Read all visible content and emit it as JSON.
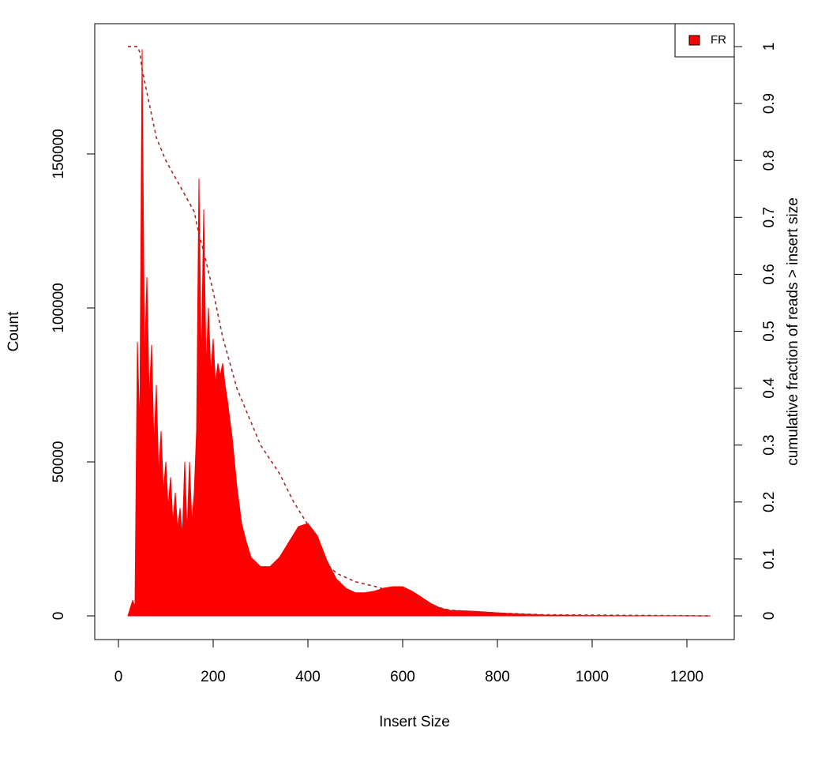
{
  "chart_data": {
    "type": "area",
    "xlabel": "Insert Size",
    "ylabel": "Count",
    "y2label": "cumulative fraction of reads > insert size",
    "xlim": [
      -50,
      1300
    ],
    "xticks": [
      0,
      200,
      400,
      600,
      800,
      1000,
      1200
    ],
    "ylim": [
      -7692,
      192308
    ],
    "yticks": [
      0,
      50000,
      100000,
      150000
    ],
    "y2lim": [
      -0.0416,
      1.0402
    ],
    "y2ticks": [
      0,
      0.1,
      0.2,
      0.3,
      0.4,
      0.5,
      0.6,
      0.7,
      0.8,
      0.9,
      1
    ],
    "legend": "top-right",
    "series": [
      {
        "name": "FR",
        "color": "#ff0000",
        "x": [
          20,
          30,
          35,
          40,
          45,
          50,
          55,
          60,
          65,
          70,
          75,
          80,
          85,
          90,
          95,
          100,
          105,
          110,
          115,
          120,
          125,
          130,
          135,
          140,
          145,
          150,
          155,
          160,
          165,
          170,
          175,
          180,
          185,
          190,
          195,
          200,
          205,
          210,
          215,
          220,
          225,
          230,
          240,
          250,
          260,
          270,
          280,
          300,
          320,
          340,
          360,
          380,
          400,
          420,
          440,
          460,
          480,
          500,
          520,
          540,
          560,
          580,
          600,
          620,
          640,
          660,
          680,
          700,
          750,
          800,
          850,
          900,
          1000,
          1100,
          1250
        ],
        "values": [
          0,
          5000,
          3000,
          89000,
          60000,
          184000,
          80000,
          110000,
          70000,
          88000,
          55000,
          75000,
          45000,
          60000,
          40000,
          50000,
          35000,
          45000,
          30000,
          40000,
          28000,
          35000,
          26000,
          50000,
          27000,
          50000,
          30000,
          40000,
          60000,
          142000,
          80000,
          132000,
          80000,
          100000,
          78000,
          90000,
          75000,
          82000,
          78000,
          82000,
          75000,
          70000,
          58000,
          42000,
          30000,
          24000,
          19000,
          16000,
          16000,
          19000,
          24000,
          29000,
          30000,
          26000,
          18000,
          12000,
          9000,
          7500,
          7500,
          8000,
          9000,
          9500,
          9500,
          8000,
          6000,
          4000,
          2500,
          1800,
          1500,
          1000,
          600,
          300,
          100,
          30,
          0
        ]
      },
      {
        "color": "#a52a2a",
        "axis": "y2",
        "dashed": true,
        "x": [
          20,
          40,
          45,
          50,
          60,
          70,
          80,
          100,
          120,
          140,
          160,
          170,
          180,
          200,
          220,
          250,
          280,
          300,
          340,
          370,
          400,
          430,
          460,
          500,
          550,
          600,
          650,
          700,
          800,
          900,
          1250
        ],
        "values": [
          1,
          1,
          0.99,
          0.96,
          0.92,
          0.88,
          0.84,
          0.8,
          0.77,
          0.74,
          0.71,
          0.67,
          0.64,
          0.57,
          0.49,
          0.4,
          0.34,
          0.3,
          0.25,
          0.2,
          0.16,
          0.1,
          0.075,
          0.06,
          0.05,
          0.035,
          0.02,
          0.01,
          0.005,
          0.002,
          0
        ]
      }
    ]
  }
}
